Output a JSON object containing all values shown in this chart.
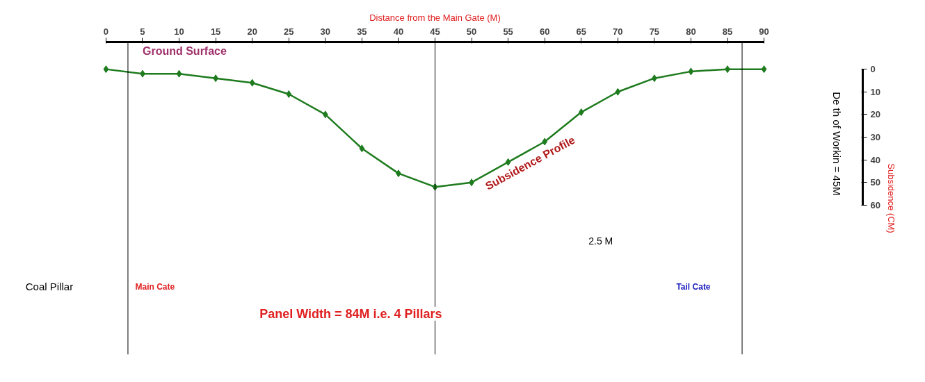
{
  "chart_data": {
    "type": "line",
    "xlabel": "Distance from the Main Gate (M)",
    "ylabel": "Subsidence (CM)",
    "x": [
      0,
      5,
      10,
      15,
      20,
      25,
      30,
      35,
      40,
      45,
      50,
      55,
      60,
      65,
      70,
      75,
      80,
      85,
      90
    ],
    "series": [
      {
        "color": "#1e7b1e",
        "values": [
          0,
          2,
          2,
          4,
          6,
          11,
          20,
          35,
          46,
          52,
          50,
          41,
          32,
          19,
          10,
          4,
          1,
          0,
          0
        ]
      }
    ],
    "xlim": [
      0,
      90
    ],
    "xticks": [
      0,
      5,
      10,
      15,
      20,
      25,
      30,
      35,
      40,
      {
        "value": 45,
        "label": "45"
      },
      50,
      55,
      60,
      65,
      70,
      75,
      80,
      85,
      90
    ],
    "ylim": [
      60,
      0
    ],
    "yticks": [
      0,
      10,
      20,
      30,
      40,
      50,
      60
    ],
    "ref_lines": [
      {
        "axis": "x",
        "value": 3,
        "color": "#000000"
      },
      {
        "axis": "x",
        "value": 45,
        "color": "#000000"
      },
      {
        "axis": "x",
        "value": 87,
        "color": "#000000"
      }
    ],
    "marker": "diamond",
    "line_style": "solid",
    "grid": false,
    "annotations": [
      "Ground Surface",
      "Subsidence Profile",
      "De th of Workin  = 45M",
      "2.5 M",
      "Coal Pillar",
      "Main Cate",
      "Tail Cate",
      "Panel Width  = 84M    i.e.   4 Pillars"
    ]
  }
}
